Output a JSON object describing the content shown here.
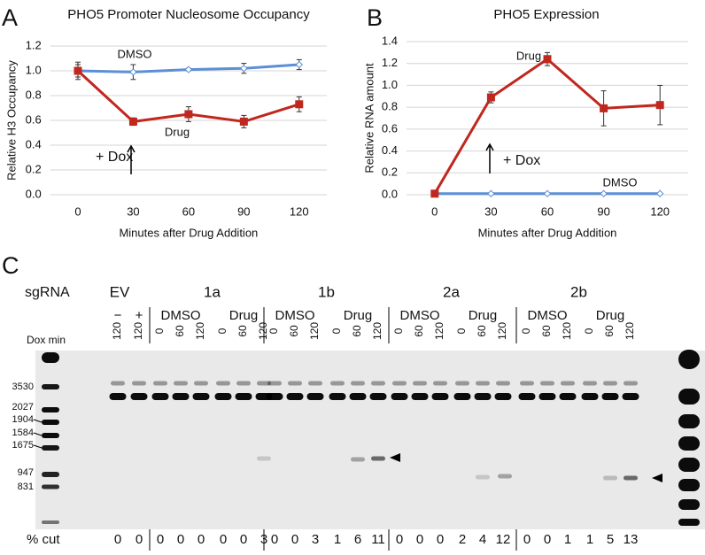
{
  "panel_labels": [
    "A",
    "B",
    "C"
  ],
  "chart_data": [
    {
      "type": "line",
      "title": "PHO5 Promoter Nucleosome Occupancy",
      "x_label": "Minutes after Drug Addition",
      "y_label": "Relative H3 Occupancy",
      "categories": [
        "0",
        "30",
        "60",
        "90",
        "120"
      ],
      "ylim": [
        0,
        1.2
      ],
      "yticks": [
        {
          "value": 0,
          "label": "0.0"
        },
        0.2,
        0.4,
        0.6,
        0.8,
        {
          "value": 1,
          "label": "1.0"
        },
        1.2
      ],
      "grid": true,
      "annotations": [
        "+ Dox"
      ],
      "series": [
        {
          "name": "DMSO",
          "color": "#5b8fd6",
          "marker": "diamond",
          "values": [
            1.0,
            0.99,
            1.01,
            1.02,
            1.05
          ],
          "errors": [
            0.07,
            0.06,
            0.01,
            0.04,
            0.04
          ]
        },
        {
          "name": "Drug",
          "color": "#c0271e",
          "marker": "square",
          "values": [
            1.0,
            0.59,
            0.65,
            0.59,
            0.73
          ],
          "errors": [
            0.05,
            0.03,
            0.06,
            0.05,
            0.06
          ]
        }
      ]
    },
    {
      "type": "line",
      "title": "PHO5 Expression",
      "x_label": "Minutes after Drug Addition",
      "y_label": "Relative RNA amount",
      "categories": [
        "0",
        "30",
        "60",
        "90",
        "120"
      ],
      "ylim": [
        0,
        1.4
      ],
      "yticks": [
        {
          "value": 0,
          "label": "0.0"
        },
        0.2,
        0.4,
        0.6,
        0.8,
        {
          "value": 1,
          "label": "1.0"
        },
        1.2,
        1.4
      ],
      "grid": true,
      "annotations": [
        "+ Dox"
      ],
      "series": [
        {
          "name": "DMSO",
          "color": "#5b8fd6",
          "marker": "diamond",
          "values": [
            0.01,
            0.01,
            0.01,
            0.01,
            0.01
          ],
          "errors": [
            0,
            0,
            0,
            0,
            0
          ]
        },
        {
          "name": "Drug",
          "color": "#c0271e",
          "marker": "square",
          "values": [
            0.01,
            0.89,
            1.24,
            0.79,
            0.82
          ],
          "errors": [
            0.01,
            0.05,
            0.06,
            0.16,
            0.18
          ]
        }
      ]
    }
  ],
  "gel": {
    "sgrna_label": "sgRNA",
    "dox_label": "Dox min",
    "cut_label": "% cut",
    "ladder": [
      "3530",
      "2027",
      "1904",
      "1584",
      "1675",
      "947",
      "831"
    ],
    "groups": [
      {
        "name": "EV",
        "conditions": [
          {
            "name": "−",
            "color": "#c0271e",
            "lanes": [
              120
            ],
            "cut": [
              0
            ]
          },
          {
            "name": "+",
            "color": "#3a78c9",
            "lanes": [
              120
            ],
            "cut": [
              0
            ]
          }
        ]
      },
      {
        "name": "1a",
        "conditions": [
          {
            "name": "DMSO",
            "color": "#c0271e",
            "lanes": [
              0,
              60,
              120
            ],
            "cut": [
              0,
              0,
              0
            ]
          },
          {
            "name": "Drug",
            "color": "#3a78c9",
            "lanes": [
              0,
              60,
              120
            ],
            "cut": [
              0,
              0,
              3
            ]
          }
        ]
      },
      {
        "name": "1b",
        "conditions": [
          {
            "name": "DMSO",
            "color": "#c0271e",
            "lanes": [
              0,
              60,
              120
            ],
            "cut": [
              0,
              0,
              3
            ]
          },
          {
            "name": "Drug",
            "color": "#3a78c9",
            "lanes": [
              0,
              60,
              120
            ],
            "cut": [
              1,
              6,
              11
            ]
          }
        ]
      },
      {
        "name": "2a",
        "conditions": [
          {
            "name": "DMSO",
            "color": "#c0271e",
            "lanes": [
              0,
              60,
              120
            ],
            "cut": [
              0,
              0,
              0
            ]
          },
          {
            "name": "Drug",
            "color": "#3a78c9",
            "lanes": [
              0,
              60,
              120
            ],
            "cut": [
              2,
              4,
              12
            ]
          }
        ]
      },
      {
        "name": "2b",
        "conditions": [
          {
            "name": "DMSO",
            "color": "#c0271e",
            "lanes": [
              0,
              60,
              120
            ],
            "cut": [
              0,
              0,
              1
            ]
          },
          {
            "name": "Drug",
            "color": "#3a78c9",
            "lanes": [
              0,
              60,
              120
            ],
            "cut": [
              1,
              5,
              13
            ]
          }
        ]
      }
    ]
  }
}
